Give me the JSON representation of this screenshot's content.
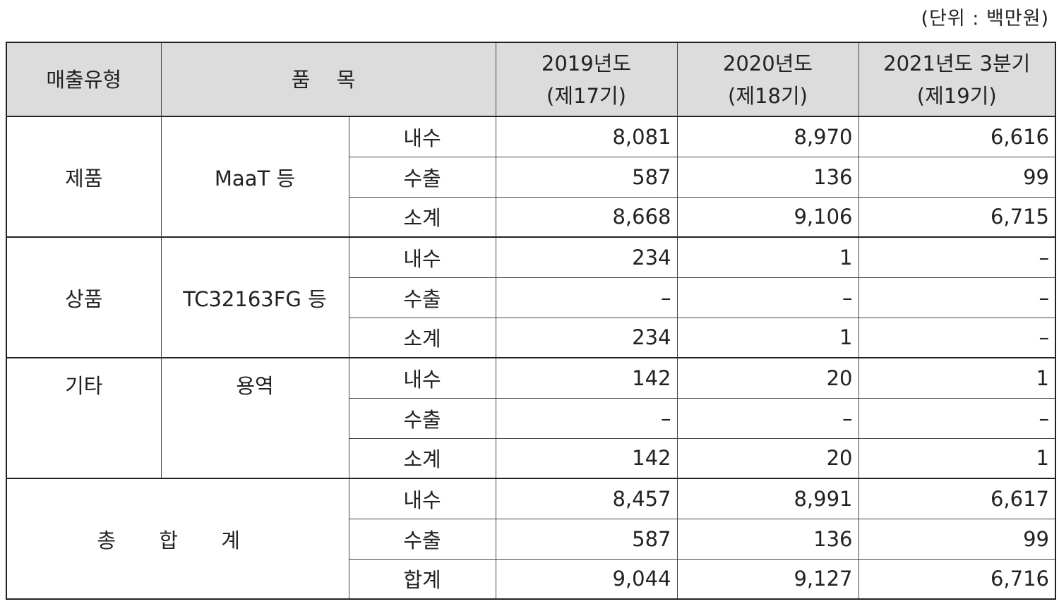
{
  "unit_note": "(단위 : 백만원)",
  "headers": {
    "type": "매출유형",
    "item": "품 목",
    "y2019": [
      "2019년도",
      "(제17기)"
    ],
    "y2020": [
      "2020년도",
      "(제18기)"
    ],
    "y2021": [
      "2021년도 3분기",
      "(제19기)"
    ]
  },
  "groups": [
    {
      "category": "제품",
      "product": "MaaT 등",
      "rows": [
        {
          "kind": "내수",
          "y2019": "8,081",
          "y2020": "8,970",
          "y2021": "6,616"
        },
        {
          "kind": "수출",
          "y2019": "587",
          "y2020": "136",
          "y2021": "99"
        },
        {
          "kind": "소계",
          "y2019": "8,668",
          "y2020": "9,106",
          "y2021": "6,715"
        }
      ]
    },
    {
      "category": "상품",
      "product": "TC32163FG 등",
      "rows": [
        {
          "kind": "내수",
          "y2019": "234",
          "y2020": "1",
          "y2021": "–"
        },
        {
          "kind": "수출",
          "y2019": "–",
          "y2020": "–",
          "y2021": "–"
        },
        {
          "kind": "소계",
          "y2019": "234",
          "y2020": "1",
          "y2021": "–"
        }
      ]
    },
    {
      "category": "기타",
      "product": "용역",
      "rows": [
        {
          "kind": "내수",
          "y2019": "142",
          "y2020": "20",
          "y2021": "1"
        },
        {
          "kind": "수출",
          "y2019": "–",
          "y2020": "–",
          "y2021": "–"
        },
        {
          "kind": "소계",
          "y2019": "142",
          "y2020": "20",
          "y2021": "1"
        }
      ]
    }
  ],
  "total": {
    "label": "총 합 계",
    "rows": [
      {
        "kind": "내수",
        "y2019": "8,457",
        "y2020": "8,991",
        "y2021": "6,617"
      },
      {
        "kind": "수출",
        "y2019": "587",
        "y2020": "136",
        "y2021": "99"
      },
      {
        "kind": "합계",
        "y2019": "9,044",
        "y2020": "9,127",
        "y2021": "6,716"
      }
    ]
  }
}
